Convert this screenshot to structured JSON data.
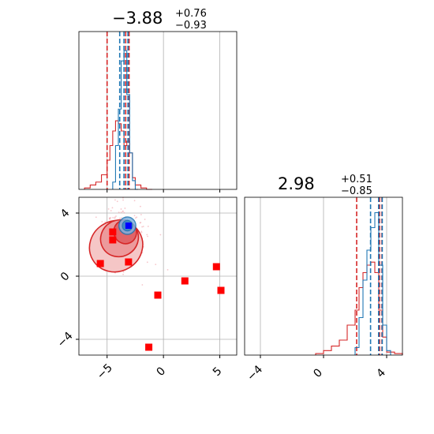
{
  "chart_data": [
    {
      "panel": "marginal-x",
      "type": "histogram",
      "title": {
        "median": "−3.88",
        "plus": "+0.76",
        "minus": "−0.93"
      },
      "xlim": [
        -7.5,
        6.5
      ],
      "grid": true,
      "series": [
        {
          "color": "#d62728",
          "bin_edges": [
            -7.0,
            -6.5,
            -6.0,
            -5.5,
            -5.0,
            -4.75,
            -4.5,
            -4.25,
            -4.0,
            -3.75,
            -3.5,
            -3.25,
            -3.0,
            -2.75,
            -2.5,
            -2.0,
            -1.5,
            -1.0
          ],
          "heights": [
            0.01,
            0.03,
            0.05,
            0.1,
            0.2,
            0.3,
            0.4,
            0.47,
            0.45,
            0.4,
            0.3,
            0.33,
            0.25,
            0.08,
            0.03,
            0.01,
            0.0
          ],
          "quantiles": [
            -5.0,
            -3.35,
            -3.05
          ]
        },
        {
          "color": "#1f77b4",
          "bin_edges": [
            -4.5,
            -4.25,
            -4.0,
            -3.75,
            -3.5,
            -3.25,
            -3.0,
            -2.75,
            -2.5,
            -2.25
          ],
          "heights": [
            0.05,
            0.3,
            0.55,
            0.88,
            0.95,
            0.65,
            0.25,
            0.06,
            0.0
          ],
          "quantiles": [
            -3.88,
            -3.5,
            -3.15
          ]
        }
      ]
    },
    {
      "panel": "joint",
      "type": "scatter",
      "xlim": [
        -7.5,
        6.5
      ],
      "ylim": [
        -5.0,
        5.0
      ],
      "grid": true,
      "x_ticks": [
        -5,
        0,
        5
      ],
      "x_tick_labels": [
        "−5",
        "0",
        "5"
      ],
      "y_ticks": [
        -4,
        0,
        4
      ],
      "y_tick_labels": [
        "−4",
        "0",
        "4"
      ],
      "red_markers": [
        [
          -5.6,
          0.8
        ],
        [
          -4.5,
          2.3
        ],
        [
          -4.5,
          2.8
        ],
        [
          -3.1,
          0.9
        ],
        [
          -0.5,
          -1.2
        ],
        [
          1.9,
          -0.3
        ],
        [
          4.7,
          0.6
        ],
        [
          5.1,
          -0.9
        ],
        [
          -1.3,
          -4.5
        ]
      ],
      "truth_marker": [
        -3.1,
        3.2
      ],
      "colors": {
        "red": "#ff0000",
        "truth": "#0000ff",
        "contour_red": "#d62728",
        "contour_blue": "#1f77b4"
      }
    },
    {
      "panel": "marginal-y",
      "type": "histogram",
      "title": {
        "median": "2.98",
        "plus": "+0.51",
        "minus": "−0.85"
      },
      "xlim": [
        -5.0,
        5.0
      ],
      "grid": true,
      "x_ticks": [
        -4,
        0,
        4
      ],
      "x_tick_labels": [
        "−4",
        "0",
        "4"
      ],
      "series": [
        {
          "color": "#d62728",
          "bin_edges": [
            -0.5,
            0.0,
            0.5,
            1.0,
            1.5,
            2.0,
            2.25,
            2.5,
            2.75,
            3.0,
            3.25,
            3.5,
            3.75,
            4.0,
            4.5,
            5.0
          ],
          "heights": [
            0.01,
            0.03,
            0.06,
            0.1,
            0.2,
            0.3,
            0.45,
            0.55,
            0.6,
            0.62,
            0.55,
            0.3,
            0.12,
            0.02,
            0.01
          ],
          "quantiles": [
            2.1,
            3.55,
            3.7
          ]
        },
        {
          "color": "#1f77b4",
          "bin_edges": [
            2.0,
            2.25,
            2.5,
            2.75,
            3.0,
            3.25,
            3.5,
            3.75,
            4.0,
            4.25
          ],
          "heights": [
            0.05,
            0.25,
            0.5,
            0.7,
            0.85,
            0.95,
            0.6,
            0.2,
            0.03
          ],
          "quantiles": [
            2.98,
            3.49,
            3.72
          ]
        }
      ]
    }
  ]
}
